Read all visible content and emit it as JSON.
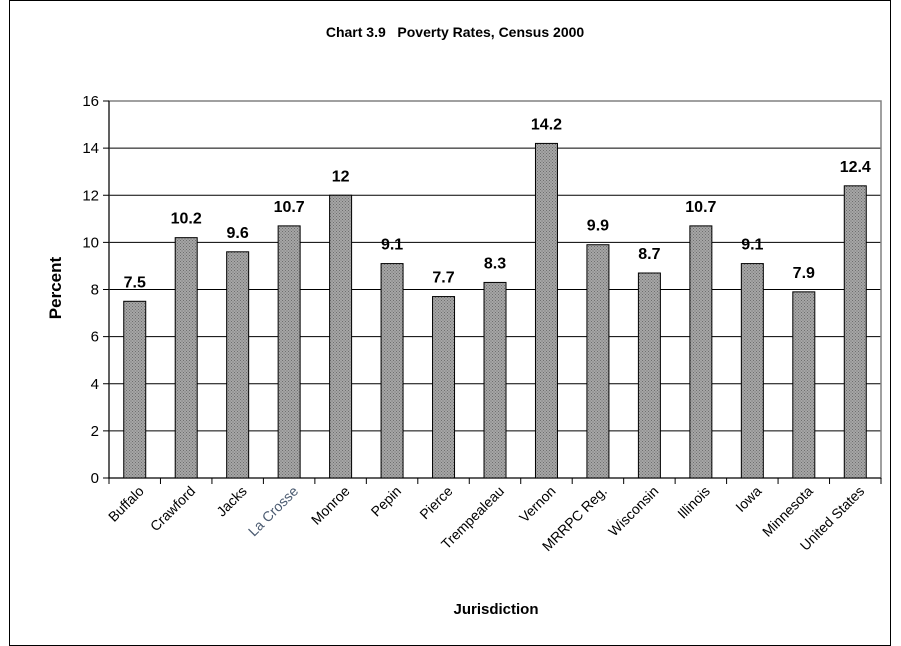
{
  "chart_data": {
    "type": "bar",
    "title": "Chart 3.9   Poverty Rates, Census 2000",
    "xlabel": "Jurisdiction",
    "ylabel": "Percent",
    "ylim": [
      0,
      16
    ],
    "yticks": [
      0,
      2,
      4,
      6,
      8,
      10,
      12,
      14,
      16
    ],
    "grid": true,
    "legend": "none",
    "categories": [
      "Buffalo",
      "Crawford",
      "Jacks",
      "La Crosse",
      "Monroe",
      "Pepin",
      "Pierce",
      "Trempealeau",
      "Vernon",
      "MRRPC Reg.",
      "Wisconsin",
      "Illinois",
      "Iowa",
      "Minnesota",
      "United States"
    ],
    "values": [
      7.5,
      10.2,
      9.6,
      10.7,
      12,
      9.1,
      7.7,
      8.3,
      14.2,
      9.9,
      8.7,
      10.7,
      9.1,
      7.9,
      12.4
    ],
    "data_labels": [
      "7.5",
      "10.2",
      "9.6",
      "10.7",
      "12",
      "9.1",
      "7.7",
      "8.3",
      "14.2",
      "9.9",
      "8.7",
      "10.7",
      "9.1",
      "7.9",
      "12.4"
    ],
    "colors": {
      "bar_fill": "#9a9a9a",
      "bar_stroke": "#000000",
      "category_highlight": "#4a5a70",
      "grid": "#000000"
    }
  }
}
